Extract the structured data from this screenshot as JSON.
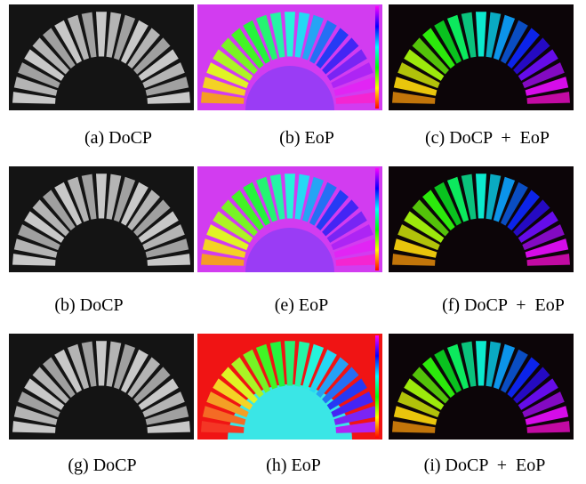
{
  "figure": {
    "panels": [
      {
        "label": "(a)",
        "text": "DoCP"
      },
      {
        "label": "(b)",
        "text": "EoP"
      },
      {
        "label": "(c)",
        "text": "DoCP  +  EoP"
      },
      {
        "label": "(b)",
        "text": "DoCP"
      },
      {
        "label": "(e)",
        "text": "EoP"
      },
      {
        "label": "(f)",
        "text": "DoCP  +  EoP"
      },
      {
        "label": "(g)",
        "text": "DoCP"
      },
      {
        "label": "(h)",
        "text": "EoP"
      },
      {
        "label": "(i)",
        "text": "DoCP  +  EoP"
      }
    ]
  }
}
